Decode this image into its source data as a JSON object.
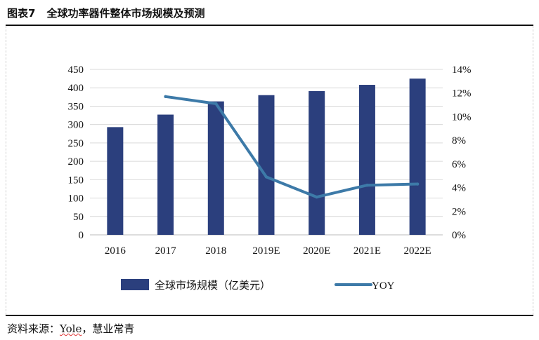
{
  "header": {
    "figure_no": "图表7",
    "title": "全球功率器件整体市场规模及预测"
  },
  "source": {
    "prefix": "资料来源：",
    "name": "Yole",
    "suffix": "，慧业常青"
  },
  "chart_data": {
    "type": "bar",
    "categories": [
      "2016",
      "2017",
      "2018",
      "2019E",
      "2020E",
      "2021E",
      "2022E"
    ],
    "series": [
      {
        "name": "全球市场规模（亿美元）",
        "type": "bar",
        "axis": "left",
        "color": "#2b3f7d",
        "values": [
          293,
          327,
          363,
          380,
          391,
          408,
          425
        ]
      },
      {
        "name": "YOY",
        "type": "line",
        "axis": "right",
        "color": "#3d7aa8",
        "values": [
          null,
          11.7,
          11.1,
          4.9,
          3.2,
          4.2,
          4.3
        ]
      }
    ],
    "left_axis": {
      "ylim": [
        0,
        450
      ],
      "ticks": [
        "0",
        "50",
        "100",
        "150",
        "200",
        "250",
        "300",
        "350",
        "400",
        "450"
      ]
    },
    "right_axis": {
      "ylim": [
        0,
        14
      ],
      "ticks": [
        "0%",
        "2%",
        "4%",
        "6%",
        "8%",
        "10%",
        "12%",
        "14%"
      ]
    },
    "grid": true,
    "legend_position": "bottom"
  }
}
